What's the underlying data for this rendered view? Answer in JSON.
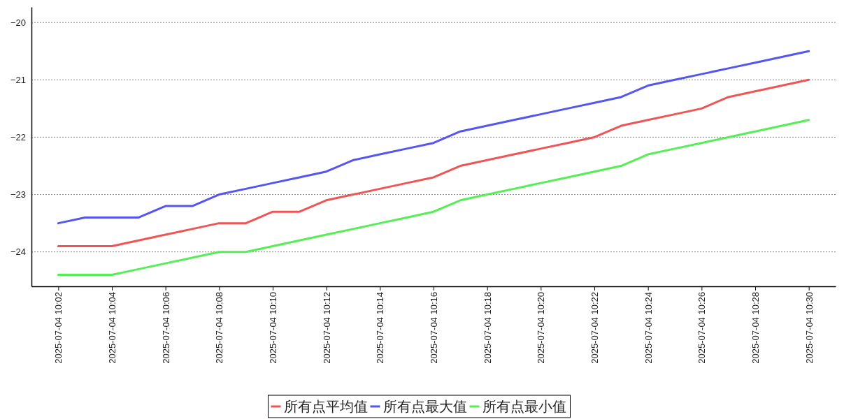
{
  "chart_data": {
    "type": "line",
    "x": [
      "2025-07-04T10:02",
      "2025-07-04T10:03",
      "2025-07-04T10:04",
      "2025-07-04T10:05",
      "2025-07-04T10:06",
      "2025-07-04T10:07",
      "2025-07-04T10:08",
      "2025-07-04T10:09",
      "2025-07-04T10:10",
      "2025-07-04T10:11",
      "2025-07-04T10:12",
      "2025-07-04T10:13",
      "2025-07-04T10:14",
      "2025-07-04T10:15",
      "2025-07-04T10:16",
      "2025-07-04T10:17",
      "2025-07-04T10:18",
      "2025-07-04T10:19",
      "2025-07-04T10:20",
      "2025-07-04T10:21",
      "2025-07-04T10:22",
      "2025-07-04T10:23",
      "2025-07-04T10:24",
      "2025-07-04T10:25",
      "2025-07-04T10:26",
      "2025-07-04T10:27",
      "2025-07-04T10:28",
      "2025-07-04T10:29",
      "2025-07-04T10:30"
    ],
    "series": [
      {
        "name": "所有点平均值",
        "color": "#ef5555",
        "values": [
          -23.9,
          -23.9,
          -23.9,
          -23.8,
          -23.7,
          -23.6,
          -23.5,
          -23.5,
          -23.3,
          -23.3,
          -23.1,
          -23.0,
          -22.9,
          -22.8,
          -22.7,
          -22.5,
          -22.4,
          -22.3,
          -22.2,
          -22.1,
          -22.0,
          -21.8,
          -21.7,
          -21.6,
          -21.5,
          -21.3,
          -21.2,
          -21.1,
          -21.0
        ]
      },
      {
        "name": "所有点最大值",
        "color": "#5555ef",
        "values": [
          -23.5,
          -23.4,
          -23.4,
          -23.4,
          -23.2,
          -23.2,
          -23.0,
          -22.9,
          -22.8,
          -22.7,
          -22.6,
          -22.4,
          -22.3,
          -22.2,
          -22.1,
          -21.9,
          -21.8,
          -21.7,
          -21.6,
          -21.5,
          -21.4,
          -21.3,
          -21.1,
          -21.0,
          -20.9,
          -20.8,
          -20.7,
          -20.6,
          -20.5
        ]
      },
      {
        "name": "所有点最小值",
        "color": "#55ef55",
        "values": [
          -24.4,
          -24.4,
          -24.4,
          -24.3,
          -24.2,
          -24.1,
          -24.0,
          -24.0,
          -23.9,
          -23.8,
          -23.7,
          -23.6,
          -23.5,
          -23.4,
          -23.3,
          -23.1,
          -23.0,
          -22.9,
          -22.8,
          -22.7,
          -22.6,
          -22.5,
          -22.3,
          -22.2,
          -22.1,
          -22.0,
          -21.9,
          -21.8,
          -21.7
        ]
      }
    ],
    "xlim": [
      "2025-07-04T10:01",
      "2025-07-04T10:31"
    ],
    "xticks": [
      {
        "value": "2025-07-04T10:02",
        "label": "2025-07-04 10:02"
      },
      {
        "value": "2025-07-04T10:04",
        "label": "2025-07-04 10:04"
      },
      {
        "value": "2025-07-04T10:06",
        "label": "2025-07-04 10:06"
      },
      {
        "value": "2025-07-04T10:08",
        "label": "2025-07-04 10:08"
      },
      {
        "value": "2025-07-04T10:10",
        "label": "2025-07-04 10:10"
      },
      {
        "value": "2025-07-04T10:12",
        "label": "2025-07-04 10:12"
      },
      {
        "value": "2025-07-04T10:14",
        "label": "2025-07-04 10:14"
      },
      {
        "value": "2025-07-04T10:16",
        "label": "2025-07-04 10:16"
      },
      {
        "value": "2025-07-04T10:18",
        "label": "2025-07-04 10:18"
      },
      {
        "value": "2025-07-04T10:20",
        "label": "2025-07-04 10:20"
      },
      {
        "value": "2025-07-04T10:22",
        "label": "2025-07-04 10:22"
      },
      {
        "value": "2025-07-04T10:24",
        "label": "2025-07-04 10:24"
      },
      {
        "value": "2025-07-04T10:26",
        "label": "2025-07-04 10:26"
      },
      {
        "value": "2025-07-04T10:28",
        "label": "2025-07-04 10:28"
      },
      {
        "value": "2025-07-04T10:30",
        "label": "2025-07-04 10:30"
      }
    ],
    "ylim": [
      -24.6,
      -19.73
    ],
    "yticks": [
      {
        "value": -24,
        "label": "−24"
      },
      {
        "value": -23,
        "label": "−23"
      },
      {
        "value": -22,
        "label": "−22"
      },
      {
        "value": -21,
        "label": "−21"
      },
      {
        "value": -20,
        "label": "−20"
      }
    ],
    "grid": "y",
    "legend": "bottom",
    "marker": "none",
    "line_style": "solid"
  }
}
